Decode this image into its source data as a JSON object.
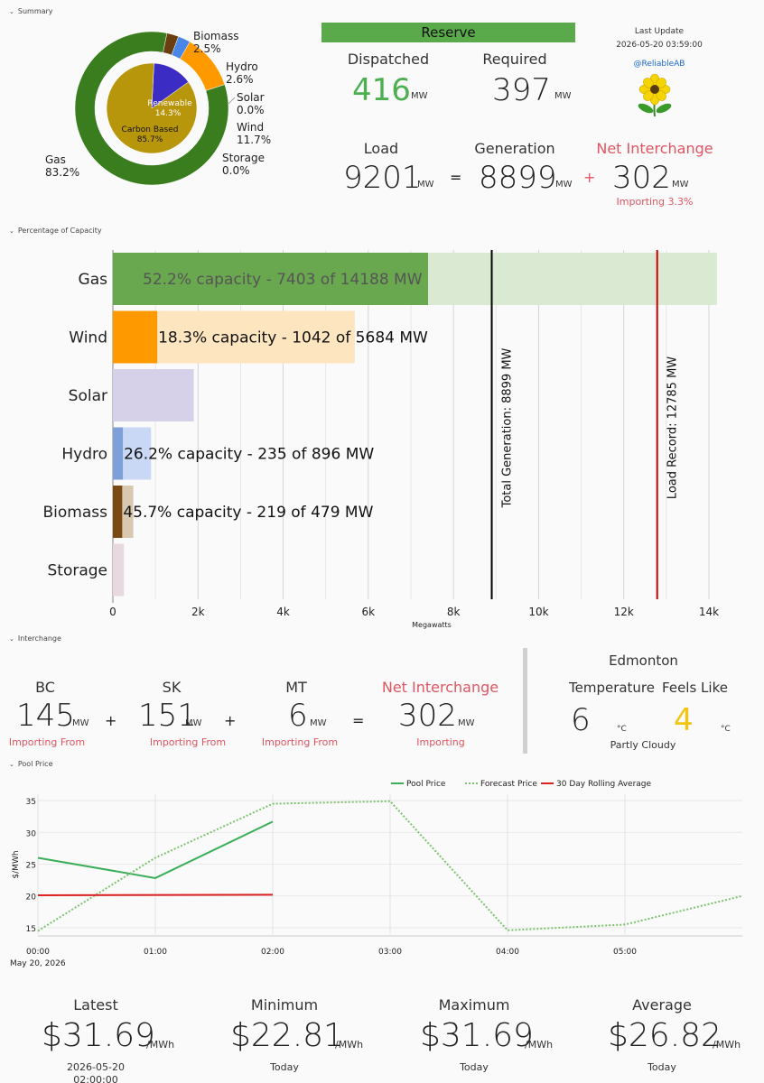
{
  "summary": {
    "section_title": "Summary",
    "donut": {
      "outer": [
        {
          "name": "Gas",
          "pct": "83.2%",
          "value": 83.2,
          "color": "#3a7d1e"
        },
        {
          "name": "Biomass",
          "pct": "2.5%",
          "value": 2.5,
          "color": "#6b3e12"
        },
        {
          "name": "Hydro",
          "pct": "2.6%",
          "value": 2.6,
          "color": "#4a86e8"
        },
        {
          "name": "Solar",
          "pct": "0.0%",
          "value": 0.0,
          "color": "#f4d03f"
        },
        {
          "name": "Wind",
          "pct": "11.7%",
          "value": 11.7,
          "color": "#ff9900"
        },
        {
          "name": "Storage",
          "pct": "0.0%",
          "value": 0.0,
          "color": "#c0a0c0"
        }
      ],
      "inner": [
        {
          "name": "Carbon Based",
          "pct": "85.7%",
          "value": 85.7,
          "color": "#b8960c"
        },
        {
          "name": "Renewable",
          "pct": "14.3%",
          "value": 14.3,
          "color": "#3b2cc4"
        }
      ]
    },
    "reserve": {
      "header": "Reserve",
      "dispatched_label": "Dispatched",
      "dispatched_value": "416",
      "required_label": "Required",
      "required_value": "397",
      "unit": "MW"
    },
    "last_update": {
      "label": "Last Update",
      "timestamp": "2026-05-20 03:59:00",
      "handle": "@ReliableAB"
    },
    "balance": {
      "load_label": "Load",
      "load_value": "9201",
      "generation_label": "Generation",
      "generation_value": "8899",
      "net_label": "Net Interchange",
      "net_value": "302",
      "net_status": "Importing 3.3%",
      "unit": "MW",
      "eq": "=",
      "plus": "+"
    }
  },
  "capacity": {
    "section_title": "Percentage of Capacity",
    "xlabel": "Megawatts",
    "ticks": [
      "0",
      "2k",
      "4k",
      "6k",
      "8k",
      "10k",
      "12k",
      "14k"
    ],
    "total_generation_label": "Total Generation: 8899 MW",
    "load_record_label": "Load Record: 12785 MW"
  },
  "chart_data": [
    {
      "type": "bar",
      "orientation": "horizontal",
      "title": "",
      "xlabel": "Megawatts",
      "ylabel": "",
      "xlim": [
        0,
        14500
      ],
      "categories": [
        "Gas",
        "Wind",
        "Solar",
        "Hydro",
        "Biomass",
        "Storage"
      ],
      "series": [
        {
          "name": "Generation",
          "values": [
            7403,
            1042,
            0,
            235,
            219,
            0
          ]
        },
        {
          "name": "Capacity",
          "values": [
            14188,
            5684,
            1900,
            896,
            479,
            260
          ]
        }
      ],
      "bar_labels": [
        "52.2% capacity - 7403 of 14188 MW",
        "18.3% capacity - 1042 of 5684 MW",
        "",
        "26.2% capacity - 235 of 896 MW",
        "45.7% capacity - 219 of 479 MW",
        ""
      ],
      "fill_colors": [
        "#6aa84f",
        "#ff9900",
        "#d6d0e8",
        "#7f9fd8",
        "#7a4a12",
        "#e8d8e0"
      ],
      "bg_colors": [
        "#d9e9d2",
        "#fde5c0",
        "#d6d0e8",
        "#c9d8f5",
        "#d8c8b0",
        "#e8d8e0"
      ],
      "reference_lines": [
        {
          "label": "Total Generation: 8899 MW",
          "x": 8899,
          "color": "#000000"
        },
        {
          "label": "Load Record: 12785 MW",
          "x": 12785,
          "color": "#cc0000"
        }
      ]
    },
    {
      "type": "line",
      "title": "",
      "xlabel": "May 20, 2026",
      "ylabel": "$/MWh",
      "ylim": [
        14,
        36
      ],
      "xlim": [
        "00:00",
        "06:00"
      ],
      "x_ticks": [
        "00:00",
        "01:00",
        "02:00",
        "03:00",
        "04:00",
        "05:00"
      ],
      "y_ticks": [
        15,
        20,
        25,
        30,
        35
      ],
      "legend_position": "top-right",
      "series": [
        {
          "name": "Pool Price",
          "color": "#3cae5a",
          "x": [
            "00:00",
            "01:00",
            "02:00"
          ],
          "values": [
            26.0,
            22.81,
            31.69
          ]
        },
        {
          "name": "Forecast Price",
          "color": "#7cc36e",
          "x": [
            "00:00",
            "01:00",
            "02:00",
            "03:00",
            "04:00",
            "05:00",
            "06:00"
          ],
          "values": [
            14.5,
            26.0,
            34.5,
            34.9,
            14.6,
            15.5,
            20.0
          ]
        },
        {
          "name": "30 Day Rolling Average",
          "color": "#dd2222",
          "x": [
            "00:00",
            "02:00"
          ],
          "values": [
            20.1,
            20.2
          ]
        }
      ]
    }
  ],
  "interchange": {
    "section_title": "Interchange",
    "bc": {
      "label": "BC",
      "value": "145",
      "status": "Importing From"
    },
    "sk": {
      "label": "SK",
      "value": "151",
      "status": "Importing From"
    },
    "mt": {
      "label": "MT",
      "value": "6",
      "status": "Importing From"
    },
    "net": {
      "label": "Net Interchange",
      "value": "302",
      "status": "Importing"
    },
    "unit": "MW",
    "plus": "+",
    "eq": "="
  },
  "weather": {
    "city": "Edmonton",
    "temp_label": "Temperature",
    "temp_value": "6",
    "feels_label": "Feels Like",
    "feels_value": "4",
    "unit": "°C",
    "condition": "Partly Cloudy"
  },
  "pool_price": {
    "section_title": "Pool Price",
    "legend": [
      "Pool Price",
      "Forecast Price",
      "30 Day Rolling Average"
    ],
    "ylabel": "$/MWh",
    "date_label": "May 20, 2026",
    "stats": [
      {
        "label": "Latest",
        "value": "$31.69",
        "unit": "/MWh",
        "sub": "2026-05-20",
        "sub2": "02:00:00"
      },
      {
        "label": "Minimum",
        "value": "$22.81",
        "unit": "/MWh",
        "sub": "Today",
        "sub2": ""
      },
      {
        "label": "Maximum",
        "value": "$31.69",
        "unit": "/MWh",
        "sub": "Today",
        "sub2": ""
      },
      {
        "label": "Average",
        "value": "$26.82",
        "unit": "/MWh",
        "sub": "Today",
        "sub2": ""
      }
    ]
  },
  "colors": {
    "reserve_green": "#5aaa4c",
    "importing_pink": "#e05561",
    "feels_yellow": "#f1c40f"
  }
}
